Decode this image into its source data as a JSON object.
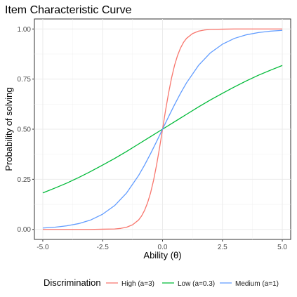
{
  "chart_data": {
    "type": "line",
    "title": "Item Characteristic Curve",
    "xlabel": "Ability (θ)",
    "ylabel": "Probability of solving",
    "xlim": [
      -5.35,
      5.35
    ],
    "ylim": [
      -0.05,
      1.05
    ],
    "x_ticks": [
      -5,
      -2.5,
      0,
      2.5,
      5
    ],
    "x_tick_labels": [
      "-5.0",
      "-2.5",
      "0.0",
      "2.5",
      "5.0"
    ],
    "y_ticks": [
      0,
      0.25,
      0.5,
      0.75,
      1
    ],
    "y_tick_labels": [
      "0.00",
      "0.25",
      "0.50",
      "0.75",
      "1.00"
    ],
    "grid": true,
    "legend_position": "bottom",
    "legend_title": "Discrimination",
    "series": [
      {
        "name": "High (a=3)",
        "color": "#F8766D",
        "x": [
          -5,
          -4.5,
          -4,
          -3.5,
          -3,
          -2.5,
          -2,
          -1.75,
          -1.5,
          -1.25,
          -1,
          -0.875,
          -0.75,
          -0.625,
          -0.5,
          -0.375,
          -0.25,
          -0.125,
          0,
          0.125,
          0.25,
          0.375,
          0.5,
          0.625,
          0.75,
          0.875,
          1,
          1.25,
          1.5,
          1.75,
          2,
          2.5,
          3,
          3.5,
          4,
          4.5,
          5
        ],
        "y": [
          0,
          0,
          0,
          0,
          0,
          0.001,
          0.002,
          0.005,
          0.011,
          0.023,
          0.047,
          0.067,
          0.095,
          0.133,
          0.182,
          0.245,
          0.321,
          0.407,
          0.5,
          0.593,
          0.679,
          0.755,
          0.818,
          0.867,
          0.905,
          0.933,
          0.953,
          0.977,
          0.989,
          0.995,
          0.998,
          0.999,
          1,
          1,
          1,
          1,
          1
        ]
      },
      {
        "name": "Low (a=0.3)",
        "color": "#00BA38",
        "x": [
          -5,
          -4.5,
          -4,
          -3.5,
          -3,
          -2.5,
          -2,
          -1.5,
          -1,
          -0.5,
          0,
          0.5,
          1,
          1.5,
          2,
          2.5,
          3,
          3.5,
          4,
          4.5,
          5
        ],
        "y": [
          0.182,
          0.206,
          0.231,
          0.259,
          0.289,
          0.321,
          0.354,
          0.389,
          0.426,
          0.463,
          0.5,
          0.537,
          0.574,
          0.611,
          0.646,
          0.679,
          0.711,
          0.741,
          0.769,
          0.794,
          0.818
        ]
      },
      {
        "name": "Medium (a=1)",
        "color": "#619CFF",
        "x": [
          -5,
          -4.5,
          -4,
          -3.5,
          -3,
          -2.5,
          -2,
          -1.5,
          -1,
          -0.75,
          -0.5,
          -0.25,
          0,
          0.25,
          0.5,
          0.75,
          1,
          1.5,
          2,
          2.5,
          3,
          3.5,
          4,
          4.5,
          5
        ],
        "y": [
          0.007,
          0.011,
          0.018,
          0.029,
          0.047,
          0.076,
          0.119,
          0.182,
          0.269,
          0.321,
          0.378,
          0.438,
          0.5,
          0.562,
          0.622,
          0.679,
          0.731,
          0.818,
          0.881,
          0.924,
          0.953,
          0.971,
          0.982,
          0.989,
          0.993
        ]
      }
    ]
  }
}
